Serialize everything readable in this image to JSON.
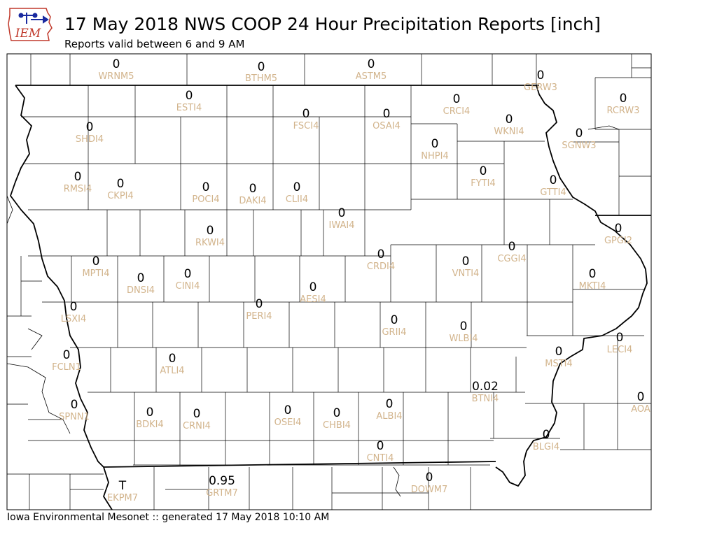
{
  "header": {
    "title": "17 May 2018 NWS COOP 24 Hour Precipitation Reports [inch]",
    "subtitle": "Reports valid between 6 and 9 AM",
    "logo_text": "IEM"
  },
  "footer": {
    "text": "Iowa Environmental Mesonet :: generated 17 May 2018 10:10 AM"
  },
  "colors": {
    "station_id": "#d2b48c",
    "value": "#000000",
    "logo_red": "#c0392b",
    "logo_blue": "#1a2aa0"
  },
  "stations": [
    {
      "id": "WRNM5",
      "value": "0"
    },
    {
      "id": "BTHM5",
      "value": "0"
    },
    {
      "id": "ASTM5",
      "value": "0"
    },
    {
      "id": "GERW3",
      "value": "0"
    },
    {
      "id": "ESTI4",
      "value": "0"
    },
    {
      "id": "CRCI4",
      "value": "0"
    },
    {
      "id": "RCRW3",
      "value": "0"
    },
    {
      "id": "FSCI4",
      "value": "0"
    },
    {
      "id": "OSAI4",
      "value": "0"
    },
    {
      "id": "WKNI4",
      "value": "0"
    },
    {
      "id": "SHDI4",
      "value": "0"
    },
    {
      "id": "SGNW3",
      "value": "0"
    },
    {
      "id": "NHPI4",
      "value": "0"
    },
    {
      "id": "FYTI4",
      "value": "0"
    },
    {
      "id": "GTTI4",
      "value": "0"
    },
    {
      "id": "RMSI4",
      "value": "0"
    },
    {
      "id": "CKPI4",
      "value": "0"
    },
    {
      "id": "POCI4",
      "value": "0"
    },
    {
      "id": "DAKI4",
      "value": "0"
    },
    {
      "id": "CLII4",
      "value": "0"
    },
    {
      "id": "IWAI4",
      "value": "0"
    },
    {
      "id": "GPGI2",
      "value": "0"
    },
    {
      "id": "RKWI4",
      "value": "0"
    },
    {
      "id": "CGGI4",
      "value": "0"
    },
    {
      "id": "CRDI4",
      "value": "0"
    },
    {
      "id": "VNTI4",
      "value": "0"
    },
    {
      "id": "MPTI4",
      "value": "0"
    },
    {
      "id": "DNSI4",
      "value": "0"
    },
    {
      "id": "CINI4",
      "value": "0"
    },
    {
      "id": "MKTI4",
      "value": "0"
    },
    {
      "id": "AESI4",
      "value": "0"
    },
    {
      "id": "LSXI4",
      "value": "0"
    },
    {
      "id": "PERI4",
      "value": "0"
    },
    {
      "id": "GRII4",
      "value": "0"
    },
    {
      "id": "WLBI4",
      "value": "0"
    },
    {
      "id": "LECI4",
      "value": "0"
    },
    {
      "id": "FCLN1",
      "value": "0"
    },
    {
      "id": "ATLI4",
      "value": "0"
    },
    {
      "id": "MSTI4",
      "value": "0"
    },
    {
      "id": "BTNI4",
      "value": "0.02"
    },
    {
      "id": "SPNN1",
      "value": "0"
    },
    {
      "id": "AOA",
      "value": "0"
    },
    {
      "id": "ALBI4",
      "value": "0"
    },
    {
      "id": "BDKI4",
      "value": "0"
    },
    {
      "id": "CRNI4",
      "value": "0"
    },
    {
      "id": "OSEI4",
      "value": "0"
    },
    {
      "id": "CHBI4",
      "value": "0"
    },
    {
      "id": "BLGI4",
      "value": "0"
    },
    {
      "id": "CNTI4",
      "value": "0"
    },
    {
      "id": "DOWM7",
      "value": "0"
    },
    {
      "id": "GRTM7",
      "value": "0.95"
    },
    {
      "id": "EKPM7",
      "value": "T"
    }
  ]
}
